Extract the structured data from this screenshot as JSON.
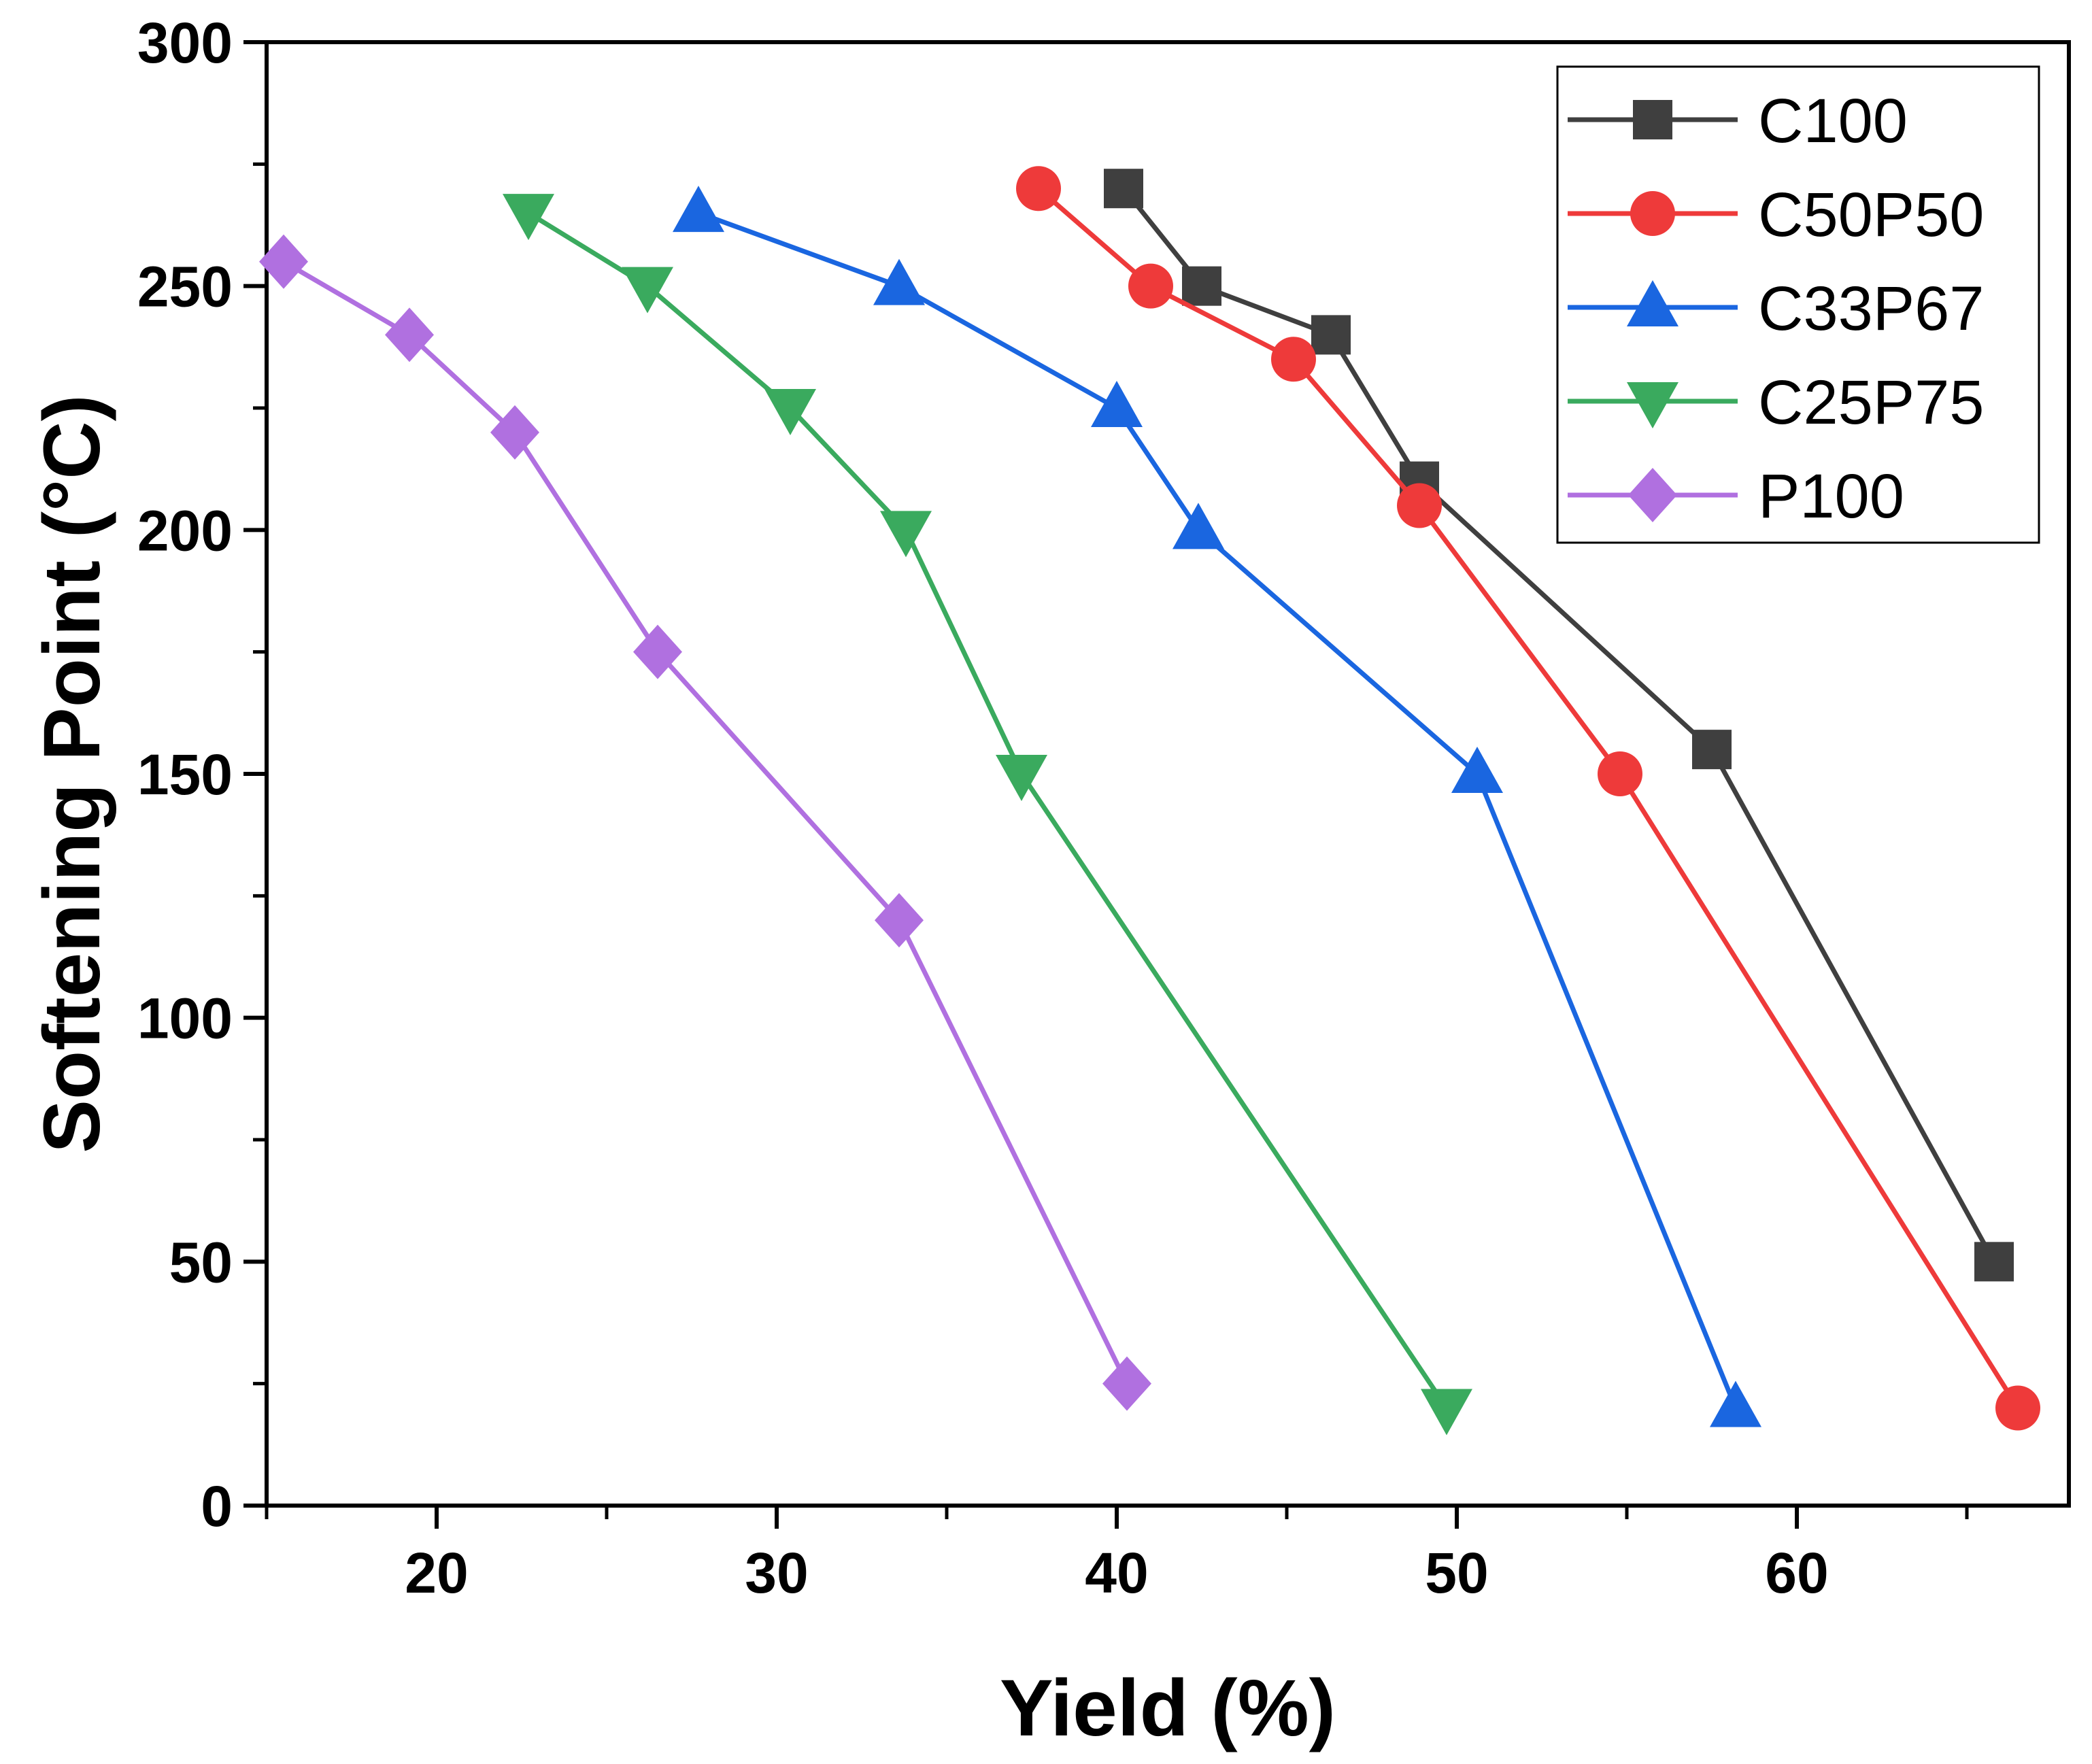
{
  "chart_data": {
    "type": "line",
    "title": "",
    "xlabel": "Yield (%)",
    "ylabel": "Softening Point (°C)",
    "xlim": [
      15,
      68
    ],
    "ylim": [
      0,
      300
    ],
    "x_ticks": [
      20,
      30,
      40,
      50,
      60
    ],
    "x_minor_ticks": [
      15,
      25,
      35,
      45,
      55,
      65
    ],
    "y_ticks": [
      0,
      50,
      100,
      150,
      200,
      250,
      300
    ],
    "y_minor_ticks": [
      25,
      75,
      125,
      175,
      225,
      275
    ],
    "grid": false,
    "legend_position": "top-right",
    "series": [
      {
        "name": "C100",
        "color": "#3f3f3f",
        "marker": "square",
        "points": [
          [
            40.2,
            270
          ],
          [
            42.5,
            250
          ],
          [
            46.3,
            240
          ],
          [
            48.9,
            210
          ],
          [
            57.5,
            155
          ],
          [
            65.8,
            50
          ]
        ]
      },
      {
        "name": "C50P50",
        "color": "#ee3a3a",
        "marker": "circle",
        "points": [
          [
            37.7,
            270
          ],
          [
            41.0,
            250
          ],
          [
            45.2,
            235
          ],
          [
            48.9,
            205
          ],
          [
            54.8,
            150
          ],
          [
            66.5,
            20
          ]
        ]
      },
      {
        "name": "C33P67",
        "color": "#1a66e0",
        "marker": "triangle-up",
        "points": [
          [
            27.7,
            265
          ],
          [
            33.6,
            250
          ],
          [
            40.0,
            225
          ],
          [
            42.4,
            200
          ],
          [
            50.6,
            150
          ],
          [
            58.2,
            20
          ]
        ]
      },
      {
        "name": "C25P75",
        "color": "#3aaa5e",
        "marker": "triangle-down",
        "points": [
          [
            22.7,
            265
          ],
          [
            26.2,
            250
          ],
          [
            30.4,
            225
          ],
          [
            33.8,
            200
          ],
          [
            37.2,
            150
          ],
          [
            49.7,
            20
          ]
        ]
      },
      {
        "name": "P100",
        "color": "#b070e0",
        "marker": "diamond",
        "points": [
          [
            15.5,
            255
          ],
          [
            19.2,
            240
          ],
          [
            22.3,
            220
          ],
          [
            26.5,
            175
          ],
          [
            33.6,
            120
          ],
          [
            40.3,
            25
          ]
        ]
      }
    ]
  }
}
